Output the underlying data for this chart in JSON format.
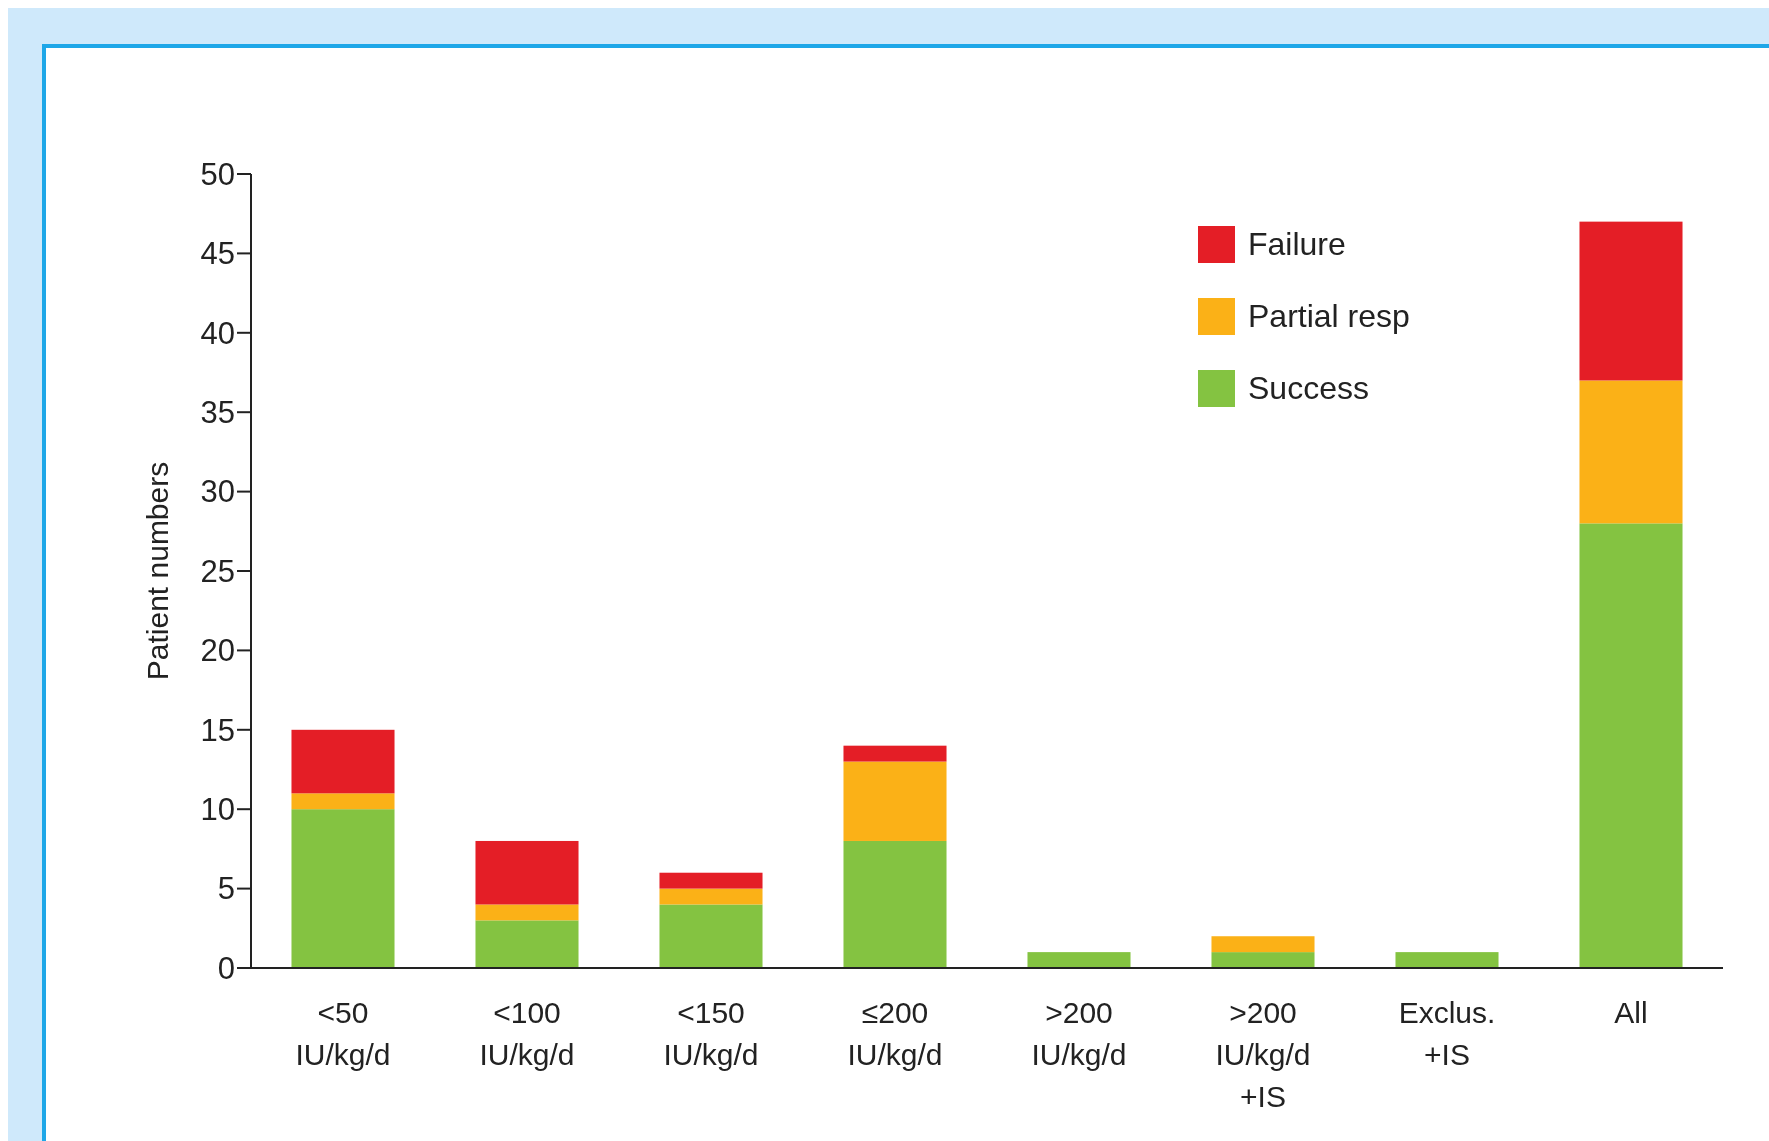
{
  "chart_data": {
    "type": "bar",
    "stacked": true,
    "ylabel": "Patient numbers",
    "categories": [
      "<50\nIU/kg/d",
      "<100\nIU/kg/d",
      "<150\nIU/kg/d",
      "≤200\nIU/kg/d",
      ">200\nIU/kg/d",
      ">200\nIU/kg/d\n+IS",
      "Exclus.\n+IS",
      "All"
    ],
    "series": [
      {
        "name": "Success",
        "color": "#84c341",
        "values": [
          10,
          3,
          4,
          8,
          1,
          1,
          1,
          28
        ]
      },
      {
        "name": "Partial resp",
        "color": "#fbb117",
        "values": [
          1,
          1,
          1,
          5,
          0,
          1,
          0,
          9
        ]
      },
      {
        "name": "Failure",
        "color": "#e41e26",
        "values": [
          4,
          4,
          1,
          1,
          0,
          0,
          0,
          10
        ]
      }
    ],
    "ylim": [
      0,
      50
    ],
    "yticks": [
      0,
      5,
      10,
      15,
      20,
      25,
      30,
      35,
      40,
      45,
      50
    ],
    "grid": false,
    "legend": "top right"
  }
}
